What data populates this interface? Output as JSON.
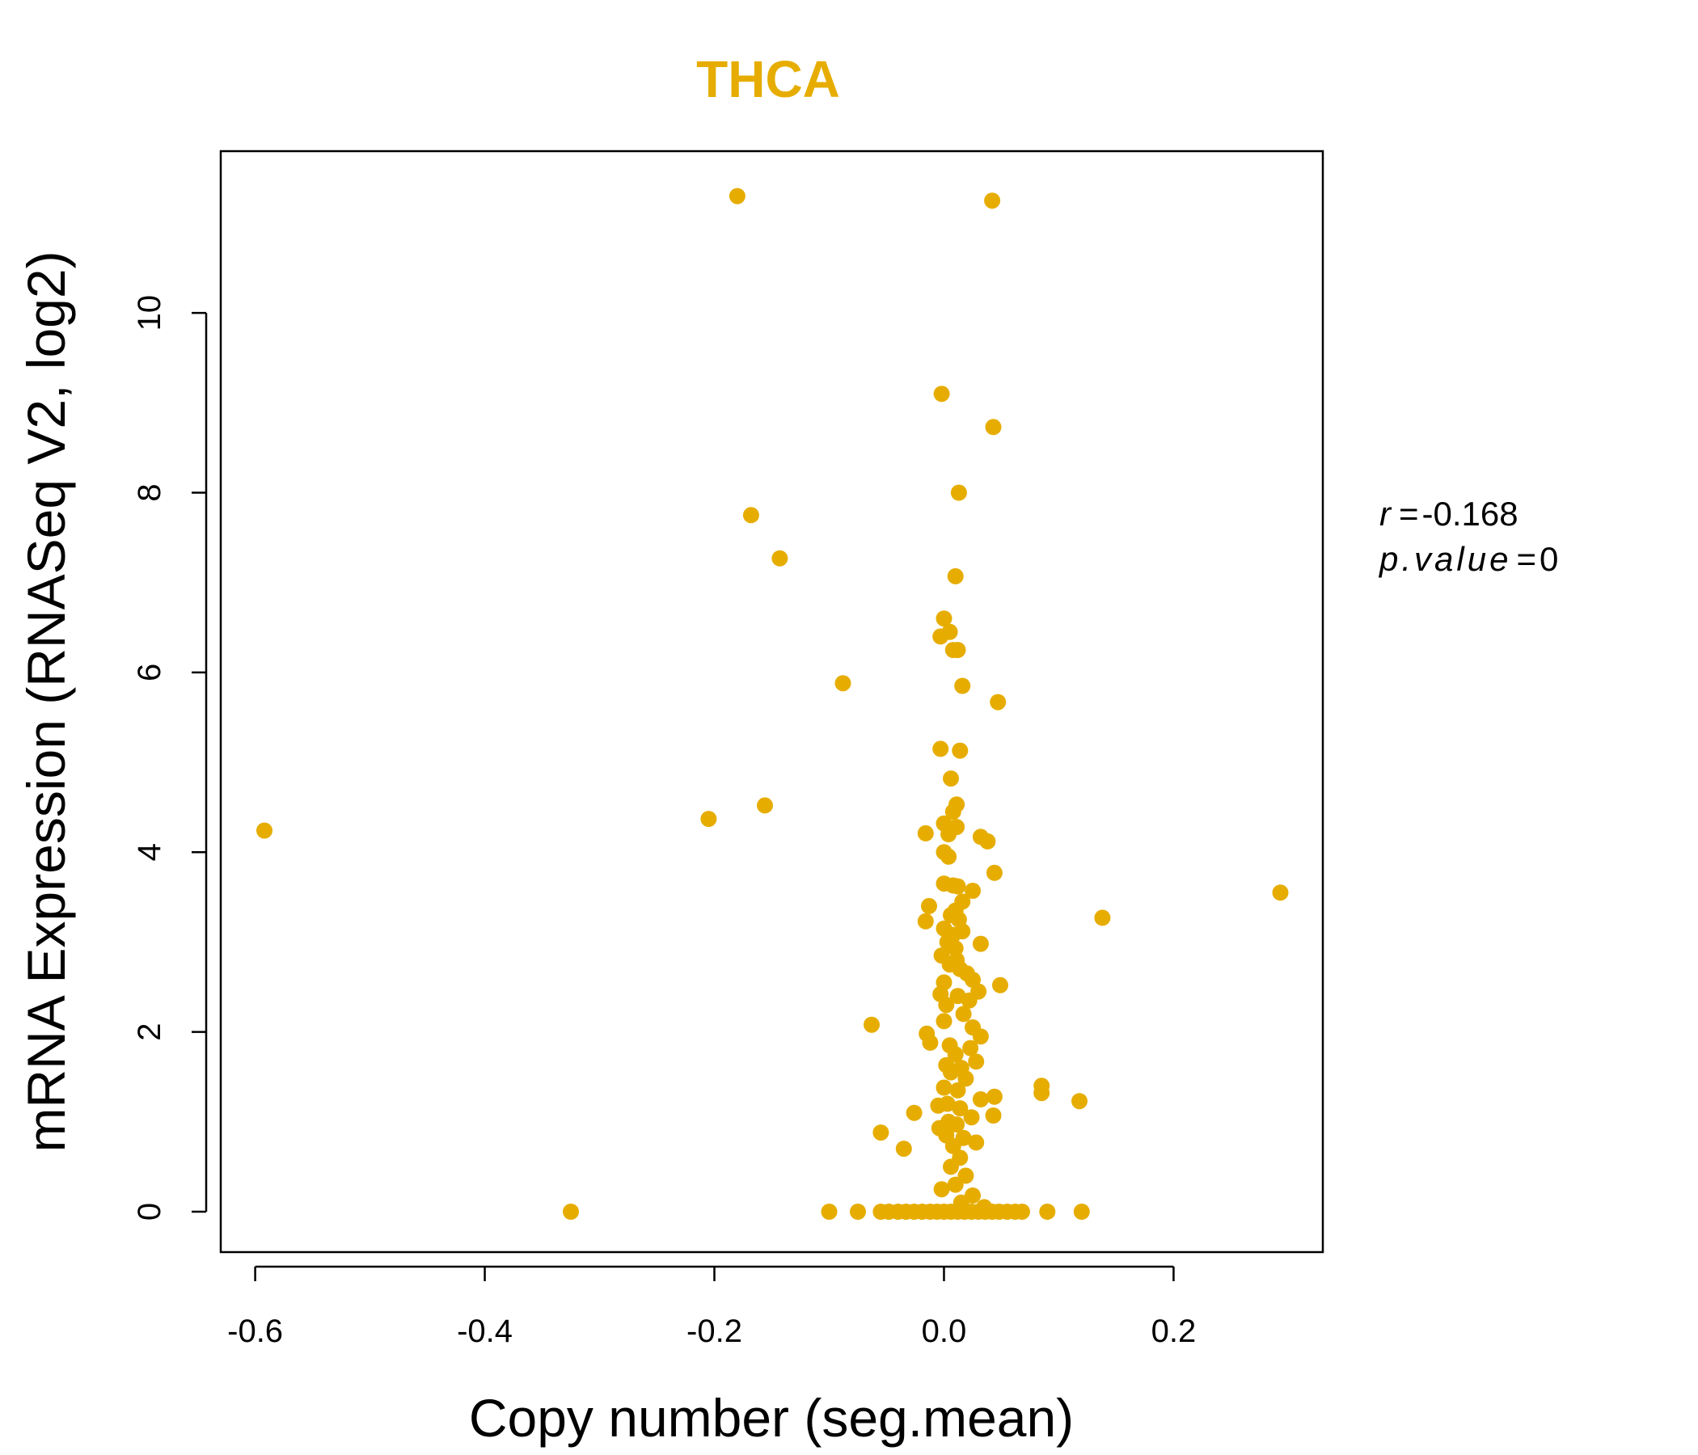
{
  "colors": {
    "point": "#E6AD00",
    "title": "#E6AD00",
    "axis": "#000000",
    "background": "#FFFFFF"
  },
  "chart_data": {
    "type": "scatter",
    "title": "THCA",
    "xlabel": "Copy number (seg.mean)",
    "ylabel": "mRNA Expression (RNASeq V2, log2)",
    "xlim": [
      -0.63,
      0.33
    ],
    "ylim": [
      -0.45,
      11.8
    ],
    "x_ticks": [
      -0.6,
      -0.4,
      -0.2,
      0.0,
      0.2
    ],
    "x_tick_labels": [
      "-0.6",
      "-0.4",
      "-0.2",
      "0.0",
      "0.2"
    ],
    "y_ticks": [
      0,
      2,
      4,
      6,
      8,
      10
    ],
    "y_tick_labels": [
      "0",
      "2",
      "4",
      "6",
      "8",
      "10"
    ],
    "grid": false,
    "legend": "none",
    "stats": {
      "r_symbol": "r",
      "r_value": "-0.168",
      "p_symbol": "p.value",
      "p_value": "0"
    },
    "points": [
      [
        -0.18,
        11.3
      ],
      [
        0.042,
        11.25
      ],
      [
        -0.002,
        9.1
      ],
      [
        0.043,
        8.73
      ],
      [
        0.013,
        8.0
      ],
      [
        -0.168,
        7.75
      ],
      [
        -0.143,
        7.27
      ],
      [
        0.01,
        7.07
      ],
      [
        0.0,
        6.6
      ],
      [
        0.005,
        6.45
      ],
      [
        -0.003,
        6.4
      ],
      [
        0.008,
        6.25
      ],
      [
        0.012,
        6.25
      ],
      [
        -0.088,
        5.88
      ],
      [
        0.016,
        5.85
      ],
      [
        0.047,
        5.67
      ],
      [
        -0.003,
        5.15
      ],
      [
        0.014,
        5.13
      ],
      [
        0.006,
        4.82
      ],
      [
        0.011,
        4.53
      ],
      [
        -0.156,
        4.52
      ],
      [
        0.008,
        4.45
      ],
      [
        -0.205,
        4.37
      ],
      [
        0.0,
        4.32
      ],
      [
        0.011,
        4.28
      ],
      [
        -0.592,
        4.24
      ],
      [
        -0.016,
        4.21
      ],
      [
        0.004,
        4.2
      ],
      [
        0.032,
        4.17
      ],
      [
        0.038,
        4.12
      ],
      [
        0.0,
        4.0
      ],
      [
        0.004,
        3.95
      ],
      [
        0.044,
        3.77
      ],
      [
        0.0,
        3.65
      ],
      [
        0.008,
        3.63
      ],
      [
        0.012,
        3.62
      ],
      [
        0.025,
        3.57
      ],
      [
        0.016,
        3.45
      ],
      [
        0.293,
        3.55
      ],
      [
        -0.013,
        3.4
      ],
      [
        0.01,
        3.35
      ],
      [
        0.006,
        3.3
      ],
      [
        0.138,
        3.27
      ],
      [
        0.013,
        3.25
      ],
      [
        -0.016,
        3.23
      ],
      [
        0.0,
        3.15
      ],
      [
        0.016,
        3.12
      ],
      [
        0.008,
        3.08
      ],
      [
        0.003,
        3.0
      ],
      [
        0.032,
        2.98
      ],
      [
        0.01,
        2.93
      ],
      [
        -0.002,
        2.85
      ],
      [
        0.011,
        2.8
      ],
      [
        0.005,
        2.75
      ],
      [
        0.014,
        2.7
      ],
      [
        0.02,
        2.65
      ],
      [
        0.025,
        2.58
      ],
      [
        0.0,
        2.55
      ],
      [
        0.049,
        2.52
      ],
      [
        0.03,
        2.45
      ],
      [
        -0.003,
        2.42
      ],
      [
        0.012,
        2.4
      ],
      [
        0.022,
        2.35
      ],
      [
        0.002,
        2.3
      ],
      [
        0.017,
        2.2
      ],
      [
        0.0,
        2.12
      ],
      [
        -0.063,
        2.08
      ],
      [
        0.025,
        2.05
      ],
      [
        -0.015,
        1.98
      ],
      [
        0.032,
        1.95
      ],
      [
        -0.012,
        1.88
      ],
      [
        0.005,
        1.85
      ],
      [
        0.023,
        1.82
      ],
      [
        0.01,
        1.75
      ],
      [
        0.028,
        1.67
      ],
      [
        0.002,
        1.63
      ],
      [
        0.015,
        1.6
      ],
      [
        0.006,
        1.55
      ],
      [
        0.019,
        1.48
      ],
      [
        0.085,
        1.4
      ],
      [
        0.0,
        1.38
      ],
      [
        0.012,
        1.35
      ],
      [
        0.085,
        1.32
      ],
      [
        0.044,
        1.28
      ],
      [
        0.032,
        1.25
      ],
      [
        0.118,
        1.23
      ],
      [
        0.003,
        1.2
      ],
      [
        -0.005,
        1.18
      ],
      [
        0.014,
        1.15
      ],
      [
        -0.026,
        1.1
      ],
      [
        0.043,
        1.07
      ],
      [
        0.024,
        1.05
      ],
      [
        0.004,
        1.0
      ],
      [
        0.011,
        0.97
      ],
      [
        -0.004,
        0.93
      ],
      [
        -0.055,
        0.88
      ],
      [
        0.002,
        0.85
      ],
      [
        0.017,
        0.82
      ],
      [
        0.028,
        0.77
      ],
      [
        0.008,
        0.73
      ],
      [
        -0.035,
        0.7
      ],
      [
        0.014,
        0.6
      ],
      [
        0.006,
        0.5
      ],
      [
        0.019,
        0.4
      ],
      [
        0.01,
        0.3
      ],
      [
        -0.002,
        0.25
      ],
      [
        0.025,
        0.18
      ],
      [
        0.015,
        0.1
      ],
      [
        0.035,
        0.05
      ],
      [
        -0.325,
        0.0
      ],
      [
        -0.1,
        0.0
      ],
      [
        -0.075,
        0.0
      ],
      [
        -0.055,
        0.0
      ],
      [
        -0.048,
        0.0
      ],
      [
        -0.04,
        0.0
      ],
      [
        -0.033,
        0.0
      ],
      [
        -0.026,
        0.0
      ],
      [
        -0.019,
        0.0
      ],
      [
        -0.012,
        0.0
      ],
      [
        -0.006,
        0.0
      ],
      [
        0.0,
        0.0
      ],
      [
        0.006,
        0.0
      ],
      [
        0.012,
        0.0
      ],
      [
        0.018,
        0.0
      ],
      [
        0.024,
        0.0
      ],
      [
        0.03,
        0.0
      ],
      [
        0.036,
        0.0
      ],
      [
        0.042,
        0.0
      ],
      [
        0.048,
        0.0
      ],
      [
        0.055,
        0.0
      ],
      [
        0.062,
        0.0
      ],
      [
        0.068,
        0.0
      ],
      [
        0.09,
        0.0
      ],
      [
        0.12,
        0.0
      ]
    ]
  }
}
